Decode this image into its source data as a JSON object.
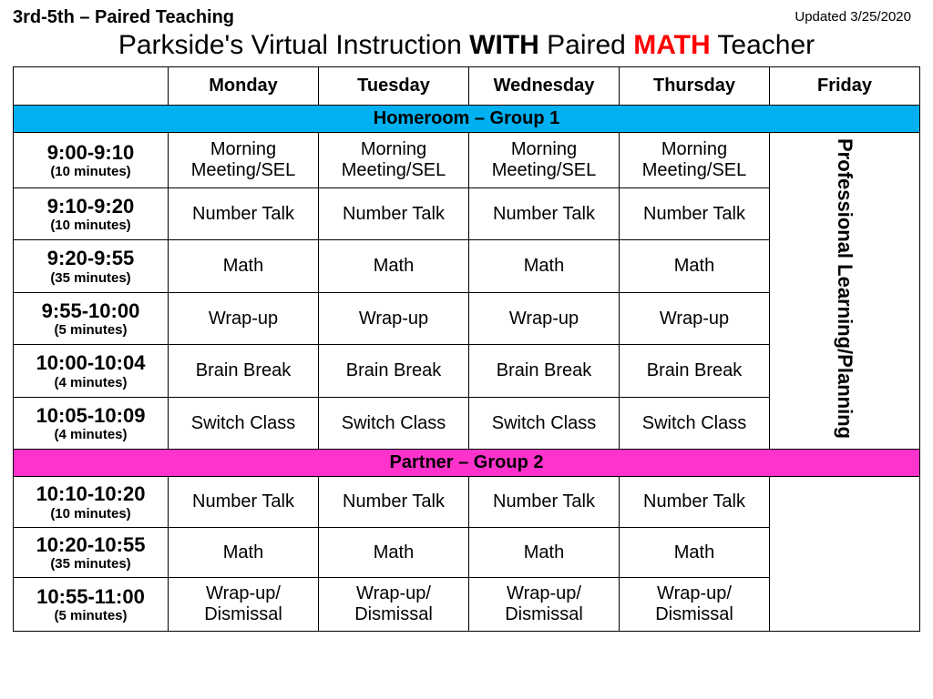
{
  "header": {
    "left": "3rd-5th – Paired Teaching",
    "right": "Updated 3/25/2020"
  },
  "title": {
    "pre": "Parkside's Virtual Instruction ",
    "with": "WITH",
    "mid": " Paired ",
    "math": "MATH",
    "post": " Teacher"
  },
  "columns": {
    "mon": "Monday",
    "tue": "Tuesday",
    "wed": "Wednesday",
    "thu": "Thursday",
    "fri": "Friday"
  },
  "banners": {
    "group1": "Homeroom – Group 1",
    "group2": "Partner – Group 2",
    "group1_color": "#00b0f0",
    "group2_color": "#ff33cc"
  },
  "friday_label": "Professional Learning/Planning",
  "group1_rows": [
    {
      "time": "9:00-9:10",
      "dur": "(10 minutes)",
      "activity": "Morning Meeting/SEL"
    },
    {
      "time": "9:10-9:20",
      "dur": "(10 minutes)",
      "activity": "Number Talk"
    },
    {
      "time": "9:20-9:55",
      "dur": "(35 minutes)",
      "activity": "Math"
    },
    {
      "time": "9:55-10:00",
      "dur": "(5 minutes)",
      "activity": "Wrap-up"
    },
    {
      "time": "10:00-10:04",
      "dur": "(4 minutes)",
      "activity": "Brain Break"
    },
    {
      "time": "10:05-10:09",
      "dur": "(4 minutes)",
      "activity": "Switch Class"
    }
  ],
  "group2_rows": [
    {
      "time": "10:10-10:20",
      "dur": "(10 minutes)",
      "activity": "Number Talk"
    },
    {
      "time": "10:20-10:55",
      "dur": "(35 minutes)",
      "activity": "Math"
    },
    {
      "time": "10:55-11:00",
      "dur": "(5 minutes)",
      "activity": "Wrap-up/ Dismissal"
    }
  ]
}
